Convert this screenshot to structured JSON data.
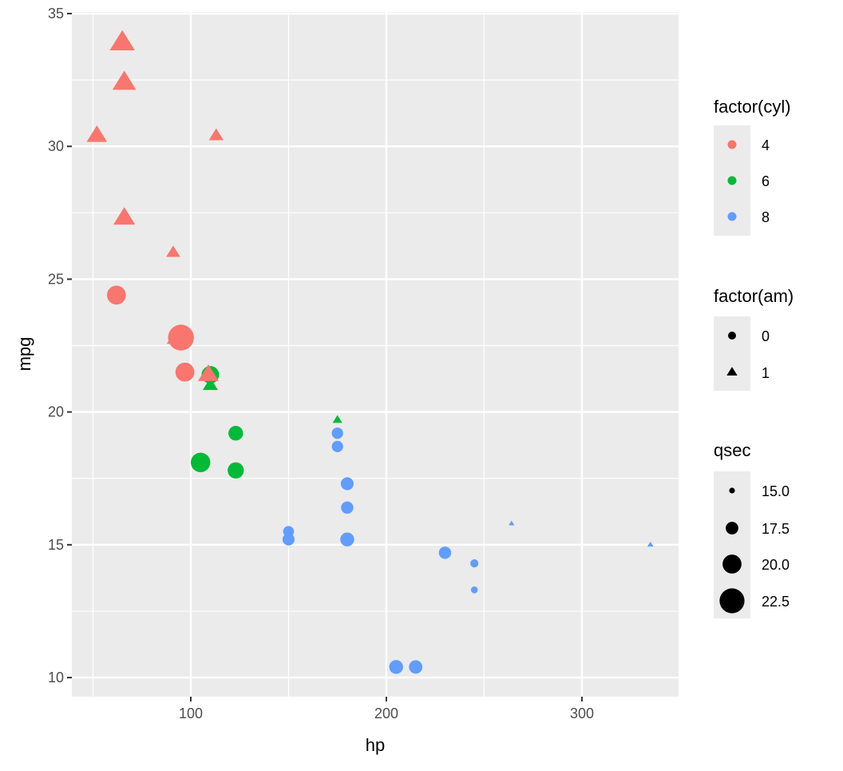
{
  "chart_data": {
    "type": "scatter",
    "xlabel": "hp",
    "ylabel": "mpg",
    "xlim": [
      39.2,
      349.4
    ],
    "ylim": [
      9.28,
      35.06
    ],
    "x_ticks": [
      100,
      200,
      300
    ],
    "y_ticks": [
      10,
      15,
      20,
      25,
      30,
      35
    ],
    "grid": true,
    "colors": {
      "4": "#F8766D",
      "6": "#00BA38",
      "8": "#619CFF",
      "panel": "#EBEBEB",
      "grid": "#FFFFFF"
    },
    "legends": [
      {
        "title": "factor(cyl)",
        "type": "color",
        "entries": [
          "4",
          "6",
          "8"
        ]
      },
      {
        "title": "factor(am)",
        "type": "shape",
        "entries": [
          {
            "label": "0",
            "shape": "circle"
          },
          {
            "label": "1",
            "shape": "triangle"
          }
        ]
      },
      {
        "title": "qsec",
        "type": "size",
        "entries": [
          "15.0",
          "17.5",
          "20.0",
          "22.5"
        ]
      }
    ],
    "legend_position": "right",
    "points": [
      {
        "hp": 110,
        "mpg": 21.0,
        "cyl": 6,
        "am": 1,
        "qsec": 16.46
      },
      {
        "hp": 110,
        "mpg": 21.0,
        "cyl": 6,
        "am": 1,
        "qsec": 17.02
      },
      {
        "hp": 93,
        "mpg": 22.8,
        "cyl": 4,
        "am": 1,
        "qsec": 18.61
      },
      {
        "hp": 110,
        "mpg": 21.4,
        "cyl": 6,
        "am": 0,
        "qsec": 19.44
      },
      {
        "hp": 175,
        "mpg": 18.7,
        "cyl": 8,
        "am": 0,
        "qsec": 17.02
      },
      {
        "hp": 105,
        "mpg": 18.1,
        "cyl": 6,
        "am": 0,
        "qsec": 20.22
      },
      {
        "hp": 245,
        "mpg": 14.3,
        "cyl": 8,
        "am": 0,
        "qsec": 15.84
      },
      {
        "hp": 62,
        "mpg": 24.4,
        "cyl": 4,
        "am": 0,
        "qsec": 20.0
      },
      {
        "hp": 95,
        "mpg": 22.8,
        "cyl": 4,
        "am": 0,
        "qsec": 22.9
      },
      {
        "hp": 123,
        "mpg": 19.2,
        "cyl": 6,
        "am": 0,
        "qsec": 18.3
      },
      {
        "hp": 123,
        "mpg": 17.8,
        "cyl": 6,
        "am": 0,
        "qsec": 18.9
      },
      {
        "hp": 180,
        "mpg": 16.4,
        "cyl": 8,
        "am": 0,
        "qsec": 17.4
      },
      {
        "hp": 180,
        "mpg": 17.3,
        "cyl": 8,
        "am": 0,
        "qsec": 17.6
      },
      {
        "hp": 180,
        "mpg": 15.2,
        "cyl": 8,
        "am": 0,
        "qsec": 18.0
      },
      {
        "hp": 205,
        "mpg": 10.4,
        "cyl": 8,
        "am": 0,
        "qsec": 17.98
      },
      {
        "hp": 215,
        "mpg": 10.4,
        "cyl": 8,
        "am": 0,
        "qsec": 17.82
      },
      {
        "hp": 230,
        "mpg": 14.7,
        "cyl": 8,
        "am": 0,
        "qsec": 17.42
      },
      {
        "hp": 66,
        "mpg": 32.4,
        "cyl": 4,
        "am": 1,
        "qsec": 19.47
      },
      {
        "hp": 52,
        "mpg": 30.4,
        "cyl": 4,
        "am": 1,
        "qsec": 18.52
      },
      {
        "hp": 65,
        "mpg": 33.9,
        "cyl": 4,
        "am": 1,
        "qsec": 19.9
      },
      {
        "hp": 97,
        "mpg": 21.5,
        "cyl": 4,
        "am": 0,
        "qsec": 20.01
      },
      {
        "hp": 150,
        "mpg": 15.5,
        "cyl": 8,
        "am": 0,
        "qsec": 16.87
      },
      {
        "hp": 150,
        "mpg": 15.2,
        "cyl": 8,
        "am": 0,
        "qsec": 17.3
      },
      {
        "hp": 245,
        "mpg": 13.3,
        "cyl": 8,
        "am": 0,
        "qsec": 15.41
      },
      {
        "hp": 175,
        "mpg": 19.2,
        "cyl": 8,
        "am": 0,
        "qsec": 17.05
      },
      {
        "hp": 66,
        "mpg": 27.3,
        "cyl": 4,
        "am": 1,
        "qsec": 18.9
      },
      {
        "hp": 91,
        "mpg": 26.0,
        "cyl": 4,
        "am": 1,
        "qsec": 16.7
      },
      {
        "hp": 113,
        "mpg": 30.4,
        "cyl": 4,
        "am": 1,
        "qsec": 16.9
      },
      {
        "hp": 264,
        "mpg": 15.8,
        "cyl": 8,
        "am": 1,
        "qsec": 14.5
      },
      {
        "hp": 175,
        "mpg": 19.7,
        "cyl": 6,
        "am": 1,
        "qsec": 15.5
      },
      {
        "hp": 335,
        "mpg": 15.0,
        "cyl": 8,
        "am": 1,
        "qsec": 14.6
      },
      {
        "hp": 109,
        "mpg": 21.4,
        "cyl": 4,
        "am": 1,
        "qsec": 18.6
      }
    ]
  }
}
